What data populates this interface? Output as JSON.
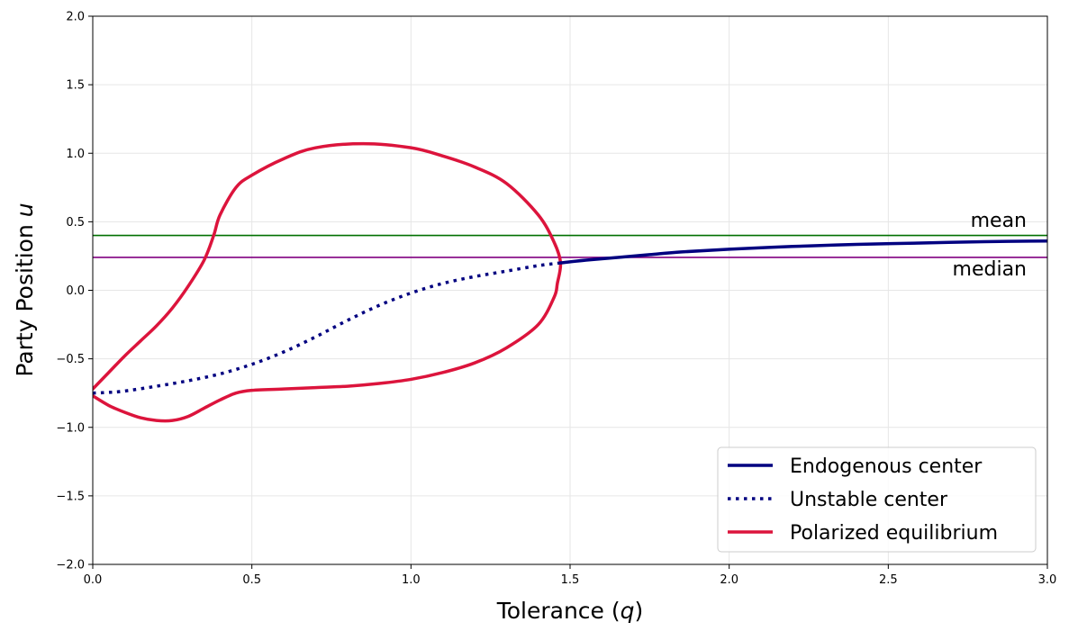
{
  "chart_data": {
    "type": "line",
    "title": "",
    "xlabel": "Tolerance (q)",
    "ylabel": "Party Position u",
    "xlim": [
      0.0,
      3.0
    ],
    "ylim": [
      -2.0,
      2.0
    ],
    "xticks": [
      0.0,
      0.5,
      1.0,
      1.5,
      2.0,
      2.5,
      3.0
    ],
    "yticks": [
      -2.0,
      -1.5,
      -1.0,
      -0.5,
      0.0,
      0.5,
      1.0,
      1.5,
      2.0
    ],
    "xtick_labels": [
      "0.0",
      "0.5",
      "1.0",
      "1.5",
      "2.0",
      "2.5",
      "3.0"
    ],
    "ytick_labels": [
      "−2.0",
      "−1.5",
      "−1.0",
      "−0.5",
      "0.0",
      "0.5",
      "1.0",
      "1.5",
      "2.0"
    ],
    "grid": true,
    "legend_position": "lower-right",
    "hlines": [
      {
        "name": "mean",
        "y": 0.4,
        "color": "#007000",
        "label": "mean"
      },
      {
        "name": "median",
        "y": 0.24,
        "color": "#800080",
        "label": "median"
      }
    ],
    "series": [
      {
        "name": "Endogenous center",
        "style": "solid",
        "color": "#000080",
        "x": [
          1.47,
          1.55,
          1.65,
          1.75,
          1.85,
          2.0,
          2.2,
          2.4,
          2.6,
          2.8,
          3.0
        ],
        "y": [
          0.2,
          0.22,
          0.24,
          0.26,
          0.28,
          0.3,
          0.32,
          0.335,
          0.345,
          0.355,
          0.36
        ]
      },
      {
        "name": "Unstable center",
        "style": "dotted",
        "color": "#000080",
        "x": [
          0.0,
          0.05,
          0.1,
          0.2,
          0.3,
          0.4,
          0.5,
          0.6,
          0.7,
          0.8,
          0.9,
          1.0,
          1.1,
          1.2,
          1.3,
          1.4,
          1.47
        ],
        "y": [
          -0.75,
          -0.745,
          -0.735,
          -0.7,
          -0.66,
          -0.61,
          -0.54,
          -0.45,
          -0.34,
          -0.22,
          -0.11,
          -0.02,
          0.05,
          0.1,
          0.14,
          0.18,
          0.2
        ]
      },
      {
        "name": "Polarized equilibrium",
        "style": "solid",
        "color": "#dc143c",
        "x": [
          0.0,
          0.05,
          0.1,
          0.15,
          0.2,
          0.25,
          0.3,
          0.35,
          0.38,
          0.4,
          0.45,
          0.5,
          0.6,
          0.7,
          0.85,
          1.0,
          1.1,
          1.2,
          1.3,
          1.4,
          1.45,
          1.47,
          1.46,
          1.45,
          1.4,
          1.3,
          1.2,
          1.1,
          1.0,
          0.9,
          0.8,
          0.7,
          0.6,
          0.5,
          0.45,
          0.4,
          0.35,
          0.3,
          0.25,
          0.2,
          0.15,
          0.1,
          0.05,
          0.0
        ],
        "y": [
          -0.72,
          -0.6,
          -0.48,
          -0.37,
          -0.26,
          -0.13,
          0.03,
          0.22,
          0.4,
          0.55,
          0.75,
          0.84,
          0.96,
          1.04,
          1.07,
          1.04,
          0.98,
          0.9,
          0.78,
          0.55,
          0.35,
          0.2,
          0.05,
          -0.05,
          -0.25,
          -0.42,
          -0.53,
          -0.6,
          -0.65,
          -0.68,
          -0.7,
          -0.71,
          -0.72,
          -0.73,
          -0.75,
          -0.8,
          -0.86,
          -0.92,
          -0.95,
          -0.95,
          -0.93,
          -0.89,
          -0.84,
          -0.77
        ]
      }
    ]
  }
}
